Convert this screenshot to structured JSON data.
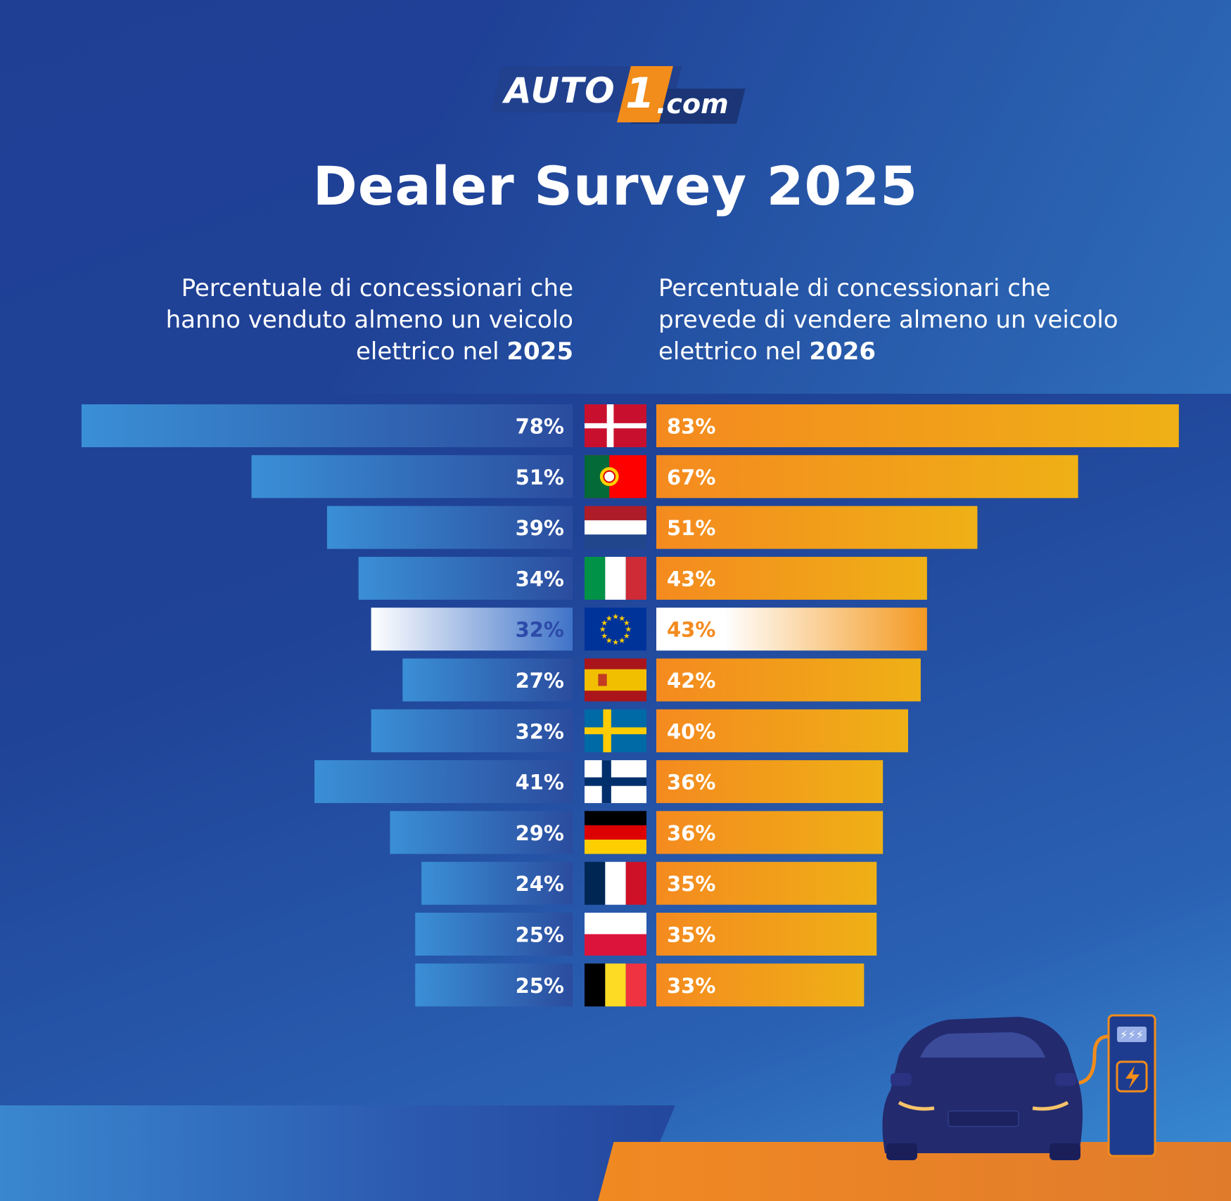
{
  "logo": {
    "brand": "AUTO",
    "number": "1",
    "domain": ".com"
  },
  "title": "Dealer Survey 2025",
  "subtitle_left": {
    "lines": [
      "Percentuale di concessionari che",
      "hanno venduto almeno un veicolo",
      "elettrico nel"
    ],
    "year": "2025"
  },
  "subtitle_right": {
    "lines": [
      "Percentuale di concessionari che",
      "prevede di vendere almeno un veicolo",
      "elettrico nel"
    ],
    "year": "2026"
  },
  "colors": {
    "bar_left": "#3a8fd6",
    "bar_left_end": "#2b4c9e",
    "bar_right": "#f48a1f",
    "bar_right_end": "#efb016",
    "highlight_left_text": "#2c4aa8",
    "highlight_right_text": "#f48a1f"
  },
  "chart_data": {
    "type": "bar",
    "orientation": "horizontal-butterfly",
    "categories": [
      "Denmark",
      "Portugal",
      "Netherlands",
      "Italy",
      "EU",
      "Spain",
      "Sweden",
      "Finland",
      "Germany",
      "France",
      "Poland",
      "Belgium"
    ],
    "flags": [
      "flag-denmark-icon",
      "flag-portugal-icon",
      "flag-netherlands-icon",
      "flag-italy-icon",
      "flag-eu-icon",
      "flag-spain-icon",
      "flag-sweden-icon",
      "flag-finland-icon",
      "flag-germany-icon",
      "flag-france-icon",
      "flag-poland-icon",
      "flag-belgium-icon"
    ],
    "series": [
      {
        "values": [
          78,
          51,
          39,
          34,
          32,
          27,
          32,
          41,
          29,
          24,
          25,
          25
        ],
        "labels": [
          "78%",
          "51%",
          "39%",
          "34%",
          "32%",
          "27%",
          "32%",
          "41%",
          "29%",
          "24%",
          "25%",
          "25%"
        ]
      },
      {
        "values": [
          83,
          67,
          51,
          43,
          43,
          42,
          40,
          36,
          36,
          35,
          35,
          33
        ],
        "labels": [
          "83%",
          "67%",
          "51%",
          "43%",
          "43%",
          "42%",
          "40%",
          "36%",
          "36%",
          "35%",
          "35%",
          "33%"
        ]
      }
    ],
    "highlight_index": 4,
    "xlim": [
      0,
      100
    ],
    "title": "Dealer Survey 2025"
  }
}
